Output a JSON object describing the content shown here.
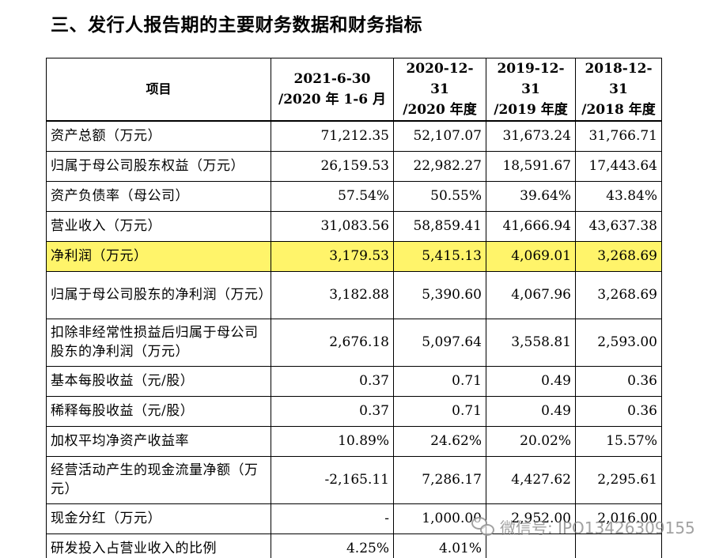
{
  "heading": "三、发行人报告期的主要财务数据和财务指标",
  "table": {
    "header": {
      "item": "项目",
      "periods": [
        {
          "line1": "2021-6-30",
          "line2": "/2020 年 1-6 月"
        },
        {
          "line1": "2020-12-31",
          "line2": "/2020 年度"
        },
        {
          "line1": "2019-12-31",
          "line2": "/2019 年度"
        },
        {
          "line1": "2018-12-31",
          "line2": "/2018 年度"
        }
      ]
    },
    "rows": [
      {
        "label": "资产总额（万元）",
        "values": [
          "71,212.35",
          "52,107.07",
          "31,673.24",
          "31,766.71"
        ]
      },
      {
        "label": "归属于母公司股东权益（万元）",
        "values": [
          "26,159.53",
          "22,982.27",
          "18,591.67",
          "17,443.64"
        ]
      },
      {
        "label": "资产负债率（母公司）",
        "values": [
          "57.54%",
          "50.55%",
          "39.64%",
          "43.84%"
        ]
      },
      {
        "label": "营业收入（万元）",
        "values": [
          "31,083.56",
          "58,859.41",
          "41,666.94",
          "43,637.38"
        ]
      },
      {
        "label": "净利润（万元）",
        "values": [
          "3,179.53",
          "5,415.13",
          "4,069.01",
          "3,268.69"
        ],
        "highlighted": true
      },
      {
        "label": "归属于母公司股东的净利润（万元）",
        "values": [
          "3,182.88",
          "5,390.60",
          "4,067.96",
          "3,268.69"
        ]
      },
      {
        "label": "扣除非经常性损益后归属于母公司股东的净利润（万元）",
        "values": [
          "2,676.18",
          "5,097.64",
          "3,558.81",
          "2,593.00"
        ]
      },
      {
        "label": "基本每股收益（元/股）",
        "values": [
          "0.37",
          "0.71",
          "0.49",
          "0.36"
        ]
      },
      {
        "label": "稀释每股收益（元/股）",
        "values": [
          "0.37",
          "0.71",
          "0.49",
          "0.36"
        ]
      },
      {
        "label": "加权平均净资产收益率",
        "values": [
          "10.89%",
          "24.62%",
          "20.02%",
          "15.57%"
        ]
      },
      {
        "label": "经营活动产生的现金流量净额（万元）",
        "values": [
          "-2,165.11",
          "7,286.17",
          "4,427.62",
          "2,295.61"
        ]
      },
      {
        "label": "现金分红（万元）",
        "values": [
          "-",
          "1,000.00",
          "2,952.00",
          "2,016.00"
        ]
      },
      {
        "label": "研发投入占营业收入的比例",
        "values": [
          "4.25%",
          "4.01%",
          "",
          ""
        ]
      }
    ]
  },
  "watermark": {
    "text": "微信号: IPO13426309155",
    "icon": "wechat-icon"
  }
}
